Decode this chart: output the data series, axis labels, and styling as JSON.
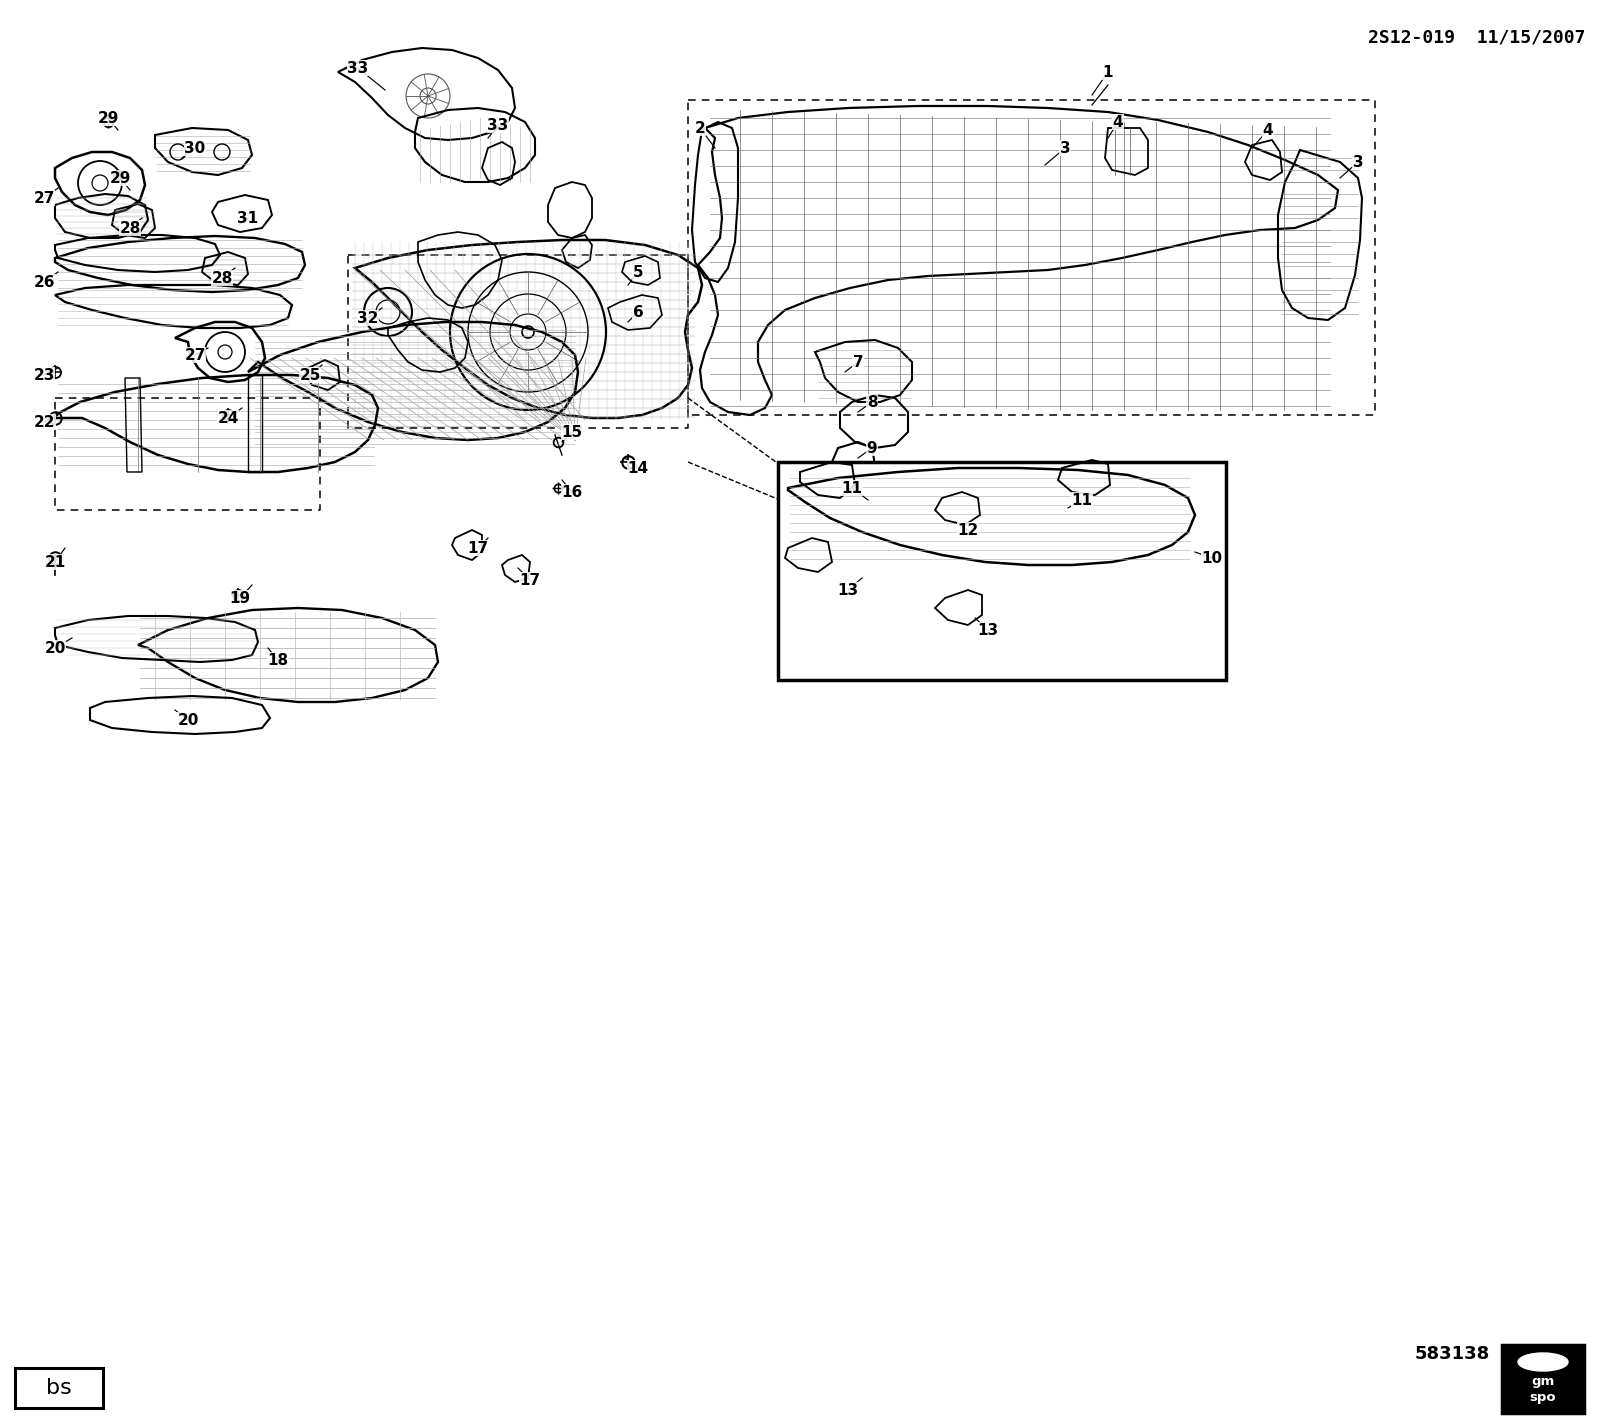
{
  "title": "2S12-019  11/15/2007",
  "diagram_number": "583138",
  "bg_color": "#ffffff",
  "line_color": "#000000",
  "figsize": [
    16.0,
    14.17
  ],
  "dpi": 100,
  "labels": [
    [
      "1",
      1108,
      72
    ],
    [
      "2",
      700,
      128
    ],
    [
      "3",
      1065,
      148
    ],
    [
      "3",
      1358,
      162
    ],
    [
      "4",
      1118,
      122
    ],
    [
      "4",
      1268,
      130
    ],
    [
      "5",
      638,
      272
    ],
    [
      "6",
      638,
      312
    ],
    [
      "7",
      858,
      362
    ],
    [
      "8",
      872,
      402
    ],
    [
      "9",
      872,
      448
    ],
    [
      "10",
      1212,
      558
    ],
    [
      "11",
      852,
      488
    ],
    [
      "11",
      1082,
      500
    ],
    [
      "12",
      968,
      530
    ],
    [
      "13",
      848,
      590
    ],
    [
      "13",
      988,
      630
    ],
    [
      "14",
      638,
      468
    ],
    [
      "15",
      572,
      432
    ],
    [
      "16",
      572,
      492
    ],
    [
      "17",
      478,
      548
    ],
    [
      "17",
      530,
      580
    ],
    [
      "18",
      278,
      660
    ],
    [
      "19",
      240,
      598
    ],
    [
      "20",
      55,
      648
    ],
    [
      "20",
      188,
      720
    ],
    [
      "21",
      55,
      562
    ],
    [
      "22",
      44,
      422
    ],
    [
      "23",
      44,
      375
    ],
    [
      "24",
      228,
      418
    ],
    [
      "25",
      310,
      375
    ],
    [
      "26",
      44,
      282
    ],
    [
      "27",
      44,
      198
    ],
    [
      "27",
      195,
      355
    ],
    [
      "28",
      130,
      228
    ],
    [
      "28",
      222,
      278
    ],
    [
      "29",
      108,
      118
    ],
    [
      "29",
      120,
      178
    ],
    [
      "30",
      195,
      148
    ],
    [
      "31",
      248,
      218
    ],
    [
      "32",
      368,
      318
    ],
    [
      "33",
      358,
      68
    ],
    [
      "33",
      498,
      125
    ]
  ],
  "leader_lines": [
    [
      1108,
      72,
      1092,
      95
    ],
    [
      700,
      128,
      715,
      148
    ],
    [
      1065,
      148,
      1045,
      165
    ],
    [
      1358,
      162,
      1340,
      178
    ],
    [
      1118,
      122,
      1108,
      138
    ],
    [
      1268,
      130,
      1252,
      148
    ],
    [
      638,
      272,
      628,
      285
    ],
    [
      638,
      312,
      628,
      322
    ],
    [
      858,
      362,
      845,
      372
    ],
    [
      872,
      402,
      858,
      412
    ],
    [
      872,
      448,
      858,
      458
    ],
    [
      1212,
      558,
      1195,
      552
    ],
    [
      852,
      488,
      868,
      500
    ],
    [
      1082,
      500,
      1068,
      508
    ],
    [
      968,
      530,
      955,
      522
    ],
    [
      848,
      590,
      862,
      578
    ],
    [
      988,
      630,
      975,
      618
    ],
    [
      638,
      468,
      625,
      458
    ],
    [
      572,
      432,
      562,
      442
    ],
    [
      572,
      492,
      562,
      480
    ],
    [
      478,
      548,
      488,
      538
    ],
    [
      530,
      580,
      518,
      568
    ],
    [
      278,
      660,
      268,
      648
    ],
    [
      240,
      598,
      252,
      585
    ],
    [
      55,
      648,
      72,
      638
    ],
    [
      188,
      720,
      175,
      710
    ],
    [
      55,
      562,
      65,
      548
    ],
    [
      44,
      422,
      58,
      415
    ],
    [
      44,
      375,
      58,
      368
    ],
    [
      228,
      418,
      242,
      408
    ],
    [
      310,
      375,
      322,
      365
    ],
    [
      44,
      282,
      58,
      272
    ],
    [
      44,
      198,
      58,
      188
    ],
    [
      195,
      355,
      208,
      348
    ],
    [
      130,
      228,
      142,
      218
    ],
    [
      222,
      278,
      235,
      268
    ],
    [
      108,
      118,
      118,
      130
    ],
    [
      120,
      178,
      130,
      190
    ],
    [
      195,
      148,
      182,
      158
    ],
    [
      248,
      218,
      238,
      225
    ],
    [
      368,
      318,
      382,
      308
    ],
    [
      358,
      68,
      385,
      90
    ],
    [
      498,
      125,
      488,
      138
    ]
  ]
}
